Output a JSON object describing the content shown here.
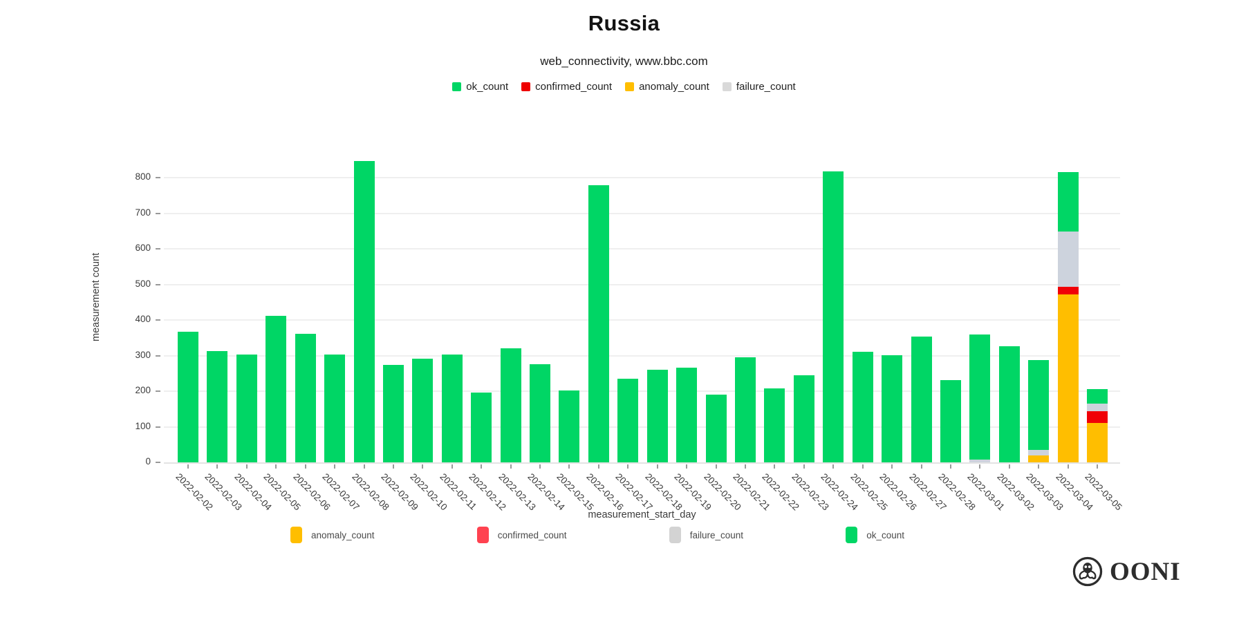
{
  "title": "Russia",
  "subtitle": "web_connectivity, www.bbc.com",
  "logo_text": "OONI",
  "top_legend": [
    {
      "label": "ok_count",
      "color": "#00d665"
    },
    {
      "label": "confirmed_count",
      "color": "#ee0000"
    },
    {
      "label": "anomaly_count",
      "color": "#ffbe00"
    },
    {
      "label": "failure_count",
      "color": "#d9d9d9"
    }
  ],
  "bottom_legend": [
    {
      "label": "anomaly_count",
      "color": "#ffbe00"
    },
    {
      "label": "confirmed_count",
      "color": "#ff4250"
    },
    {
      "label": "failure_count",
      "color": "#d3d3d3"
    },
    {
      "label": "ok_count",
      "color": "#00d665"
    }
  ],
  "chart_data": {
    "type": "bar",
    "stacked": true,
    "title": "Russia",
    "subtitle": "web_connectivity, www.bbc.com",
    "xlabel": "measurement_start_day",
    "ylabel": "measurement count",
    "ylim": [
      0,
      933
    ],
    "y_ticks": [
      0,
      100,
      200,
      300,
      400,
      500,
      600,
      700,
      800
    ],
    "grid": true,
    "legend_position": "top-center and below-axis",
    "categories": [
      "2022-02-02",
      "2022-02-03",
      "2022-02-04",
      "2022-02-05",
      "2022-02-06",
      "2022-02-07",
      "2022-02-08",
      "2022-02-09",
      "2022-02-10",
      "2022-02-11",
      "2022-02-12",
      "2022-02-13",
      "2022-02-14",
      "2022-02-15",
      "2022-02-16",
      "2022-02-17",
      "2022-02-18",
      "2022-02-19",
      "2022-02-20",
      "2022-02-21",
      "2022-02-22",
      "2022-02-23",
      "2022-02-24",
      "2022-02-25",
      "2022-02-26",
      "2022-02-27",
      "2022-02-28",
      "2022-03-01",
      "2022-03-02",
      "2022-03-03",
      "2022-03-04",
      "2022-03-05"
    ],
    "series": [
      {
        "name": "anomaly_count",
        "color": "#ffbe00",
        "values": [
          0,
          0,
          0,
          0,
          0,
          0,
          0,
          0,
          0,
          0,
          0,
          0,
          0,
          0,
          0,
          0,
          0,
          0,
          0,
          0,
          0,
          0,
          0,
          0,
          0,
          0,
          0,
          0,
          0,
          20,
          472,
          110
        ]
      },
      {
        "name": "confirmed_count",
        "color": "#f00007",
        "values": [
          0,
          0,
          0,
          0,
          0,
          0,
          0,
          0,
          0,
          0,
          0,
          0,
          0,
          0,
          0,
          0,
          0,
          0,
          0,
          0,
          0,
          0,
          0,
          0,
          0,
          0,
          0,
          0,
          0,
          0,
          22,
          33
        ]
      },
      {
        "name": "failure_count",
        "color": "#cdd3dd",
        "values": [
          0,
          0,
          0,
          0,
          0,
          0,
          0,
          0,
          0,
          0,
          0,
          0,
          0,
          0,
          0,
          0,
          0,
          0,
          0,
          0,
          0,
          0,
          0,
          0,
          0,
          0,
          0,
          7,
          0,
          15,
          156,
          22
        ]
      },
      {
        "name": "ok_count",
        "color": "#00d665",
        "values": [
          368,
          313,
          304,
          412,
          361,
          303,
          848,
          274,
          292,
          304,
          197,
          320,
          276,
          202,
          779,
          236,
          261,
          266,
          191,
          296,
          208,
          245,
          818,
          311,
          301,
          354,
          232,
          352,
          326,
          252,
          166,
          42
        ]
      }
    ]
  }
}
